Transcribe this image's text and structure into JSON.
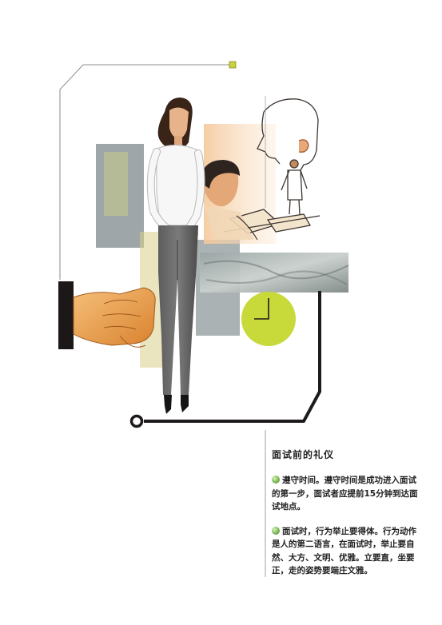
{
  "article": {
    "title": "面试前的礼仪",
    "paragraphs": [
      "遵守时间。遵守时间是成功进入面试的第一步，面试者应提前15分钟到达面试地点。",
      "面试时，行为举止要得体。行为动作是人的第二语言，在面试时，举止要自然、大方、文明、优雅。立要直，坐要正，走的姿势要端庄文雅。"
    ]
  },
  "colors": {
    "bullet": "#6fae4e",
    "clock_face": "#c8d93a",
    "frame_line": "#1e1a1a",
    "accent_square": "#c9d23a"
  },
  "icons": [
    "bullet-dot-icon",
    "clock-icon",
    "handshake-illustration",
    "businesswoman-illustration",
    "interview-sketch-illustration"
  ]
}
